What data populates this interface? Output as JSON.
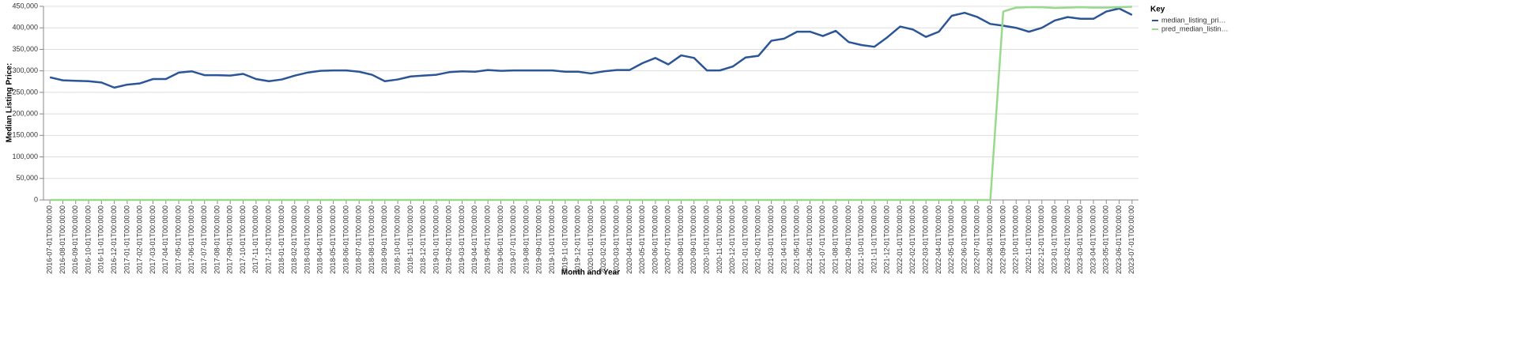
{
  "chart_data": {
    "type": "line",
    "x_label": "Month and Year",
    "y_label": "Median Listing Price:",
    "legend_title": "Key",
    "legend": "right",
    "grid": true,
    "categories": [
      "2016-07-01T00:00:00",
      "2016-08-01T00:00:00",
      "2016-09-01T00:00:00",
      "2016-10-01T00:00:00",
      "2016-11-01T00:00:00",
      "2016-12-01T00:00:00",
      "2017-01-01T00:00:00",
      "2017-02-01T00:00:00",
      "2017-03-01T00:00:00",
      "2017-04-01T00:00:00",
      "2017-05-01T00:00:00",
      "2017-06-01T00:00:00",
      "2017-07-01T00:00:00",
      "2017-08-01T00:00:00",
      "2017-09-01T00:00:00",
      "2017-10-01T00:00:00",
      "2017-11-01T00:00:00",
      "2017-12-01T00:00:00",
      "2018-01-01T00:00:00",
      "2018-02-01T00:00:00",
      "2018-03-01T00:00:00",
      "2018-04-01T00:00:00",
      "2018-05-01T00:00:00",
      "2018-06-01T00:00:00",
      "2018-07-01T00:00:00",
      "2018-08-01T00:00:00",
      "2018-09-01T00:00:00",
      "2018-10-01T00:00:00",
      "2018-11-01T00:00:00",
      "2018-12-01T00:00:00",
      "2019-01-01T00:00:00",
      "2019-02-01T00:00:00",
      "2019-03-01T00:00:00",
      "2019-04-01T00:00:00",
      "2019-05-01T00:00:00",
      "2019-06-01T00:00:00",
      "2019-07-01T00:00:00",
      "2019-08-01T00:00:00",
      "2019-09-01T00:00:00",
      "2019-10-01T00:00:00",
      "2019-11-01T00:00:00",
      "2019-12-01T00:00:00",
      "2020-01-01T00:00:00",
      "2020-02-01T00:00:00",
      "2020-03-01T00:00:00",
      "2020-04-01T00:00:00",
      "2020-05-01T00:00:00",
      "2020-06-01T00:00:00",
      "2020-07-01T00:00:00",
      "2020-08-01T00:00:00",
      "2020-09-01T00:00:00",
      "2020-10-01T00:00:00",
      "2020-11-01T00:00:00",
      "2020-12-01T00:00:00",
      "2021-01-01T00:00:00",
      "2021-02-01T00:00:00",
      "2021-03-01T00:00:00",
      "2021-04-01T00:00:00",
      "2021-05-01T00:00:00",
      "2021-06-01T00:00:00",
      "2021-07-01T00:00:00",
      "2021-08-01T00:00:00",
      "2021-09-01T00:00:00",
      "2021-10-01T00:00:00",
      "2021-11-01T00:00:00",
      "2021-12-01T00:00:00",
      "2022-01-01T00:00:00",
      "2022-02-01T00:00:00",
      "2022-03-01T00:00:00",
      "2022-04-01T00:00:00",
      "2022-05-01T00:00:00",
      "2022-06-01T00:00:00",
      "2022-07-01T00:00:00",
      "2022-08-01T00:00:00",
      "2022-09-01T00:00:00",
      "2022-10-01T00:00:00",
      "2022-11-01T00:00:00",
      "2022-12-01T00:00:00",
      "2023-01-01T00:00:00",
      "2023-02-01T00:00:00",
      "2023-03-01T00:00:00",
      "2023-04-01T00:00:00",
      "2023-05-01T00:00:00",
      "2023-06-01T00:00:00",
      "2023-07-01T00:00:00"
    ],
    "series": [
      {
        "name": "median_listing_pri…",
        "color": "#2b5597",
        "values": [
          285000,
          278000,
          277000,
          276000,
          273000,
          261000,
          268000,
          271000,
          281000,
          281000,
          296000,
          299000,
          290000,
          290000,
          289000,
          293000,
          281000,
          276000,
          280000,
          289000,
          296000,
          300000,
          301000,
          301000,
          298000,
          291000,
          276000,
          280000,
          287000,
          289000,
          291000,
          297000,
          299000,
          298000,
          302000,
          300000,
          301000,
          301000,
          301000,
          301000,
          298000,
          298000,
          294000,
          299000,
          302000,
          302000,
          318000,
          330000,
          315000,
          336000,
          330000,
          301000,
          301000,
          310000,
          331000,
          335000,
          370000,
          375000,
          391000,
          391000,
          381000,
          393000,
          367000,
          360000,
          356000,
          378000,
          403000,
          396000,
          379000,
          391000,
          428000,
          435000,
          425000,
          409000,
          405000,
          400000,
          391000,
          400000,
          417000,
          425000,
          421000,
          421000,
          438000,
          445000,
          430000
        ]
      },
      {
        "name": "pred_median_listin…",
        "color": "#98d98e",
        "values": [
          0,
          0,
          0,
          0,
          0,
          0,
          0,
          0,
          0,
          0,
          0,
          0,
          0,
          0,
          0,
          0,
          0,
          0,
          0,
          0,
          0,
          0,
          0,
          0,
          0,
          0,
          0,
          0,
          0,
          0,
          0,
          0,
          0,
          0,
          0,
          0,
          0,
          0,
          0,
          0,
          0,
          0,
          0,
          0,
          0,
          0,
          0,
          0,
          0,
          0,
          0,
          0,
          0,
          0,
          0,
          0,
          0,
          0,
          0,
          0,
          0,
          0,
          0,
          0,
          0,
          0,
          0,
          0,
          0,
          0,
          0,
          0,
          0,
          0,
          438000,
          447000,
          448000,
          448000,
          446000,
          447000,
          448000,
          447000,
          447000,
          448000,
          449000
        ]
      }
    ],
    "ylim": [
      0,
      450000
    ],
    "yticks": [
      0,
      {
        "value": 50000,
        "label": "50,000"
      },
      {
        "value": 100000,
        "label": "100,000"
      },
      {
        "value": 150000,
        "label": "150,000"
      },
      {
        "value": 200000,
        "label": "200,000"
      },
      {
        "value": 250000,
        "label": "250,000"
      },
      {
        "value": 300000,
        "label": "300,000"
      },
      {
        "value": 350000,
        "label": "350,000"
      },
      {
        "value": 400000,
        "label": "400,000"
      },
      {
        "value": 450000,
        "label": "450,000"
      }
    ]
  }
}
